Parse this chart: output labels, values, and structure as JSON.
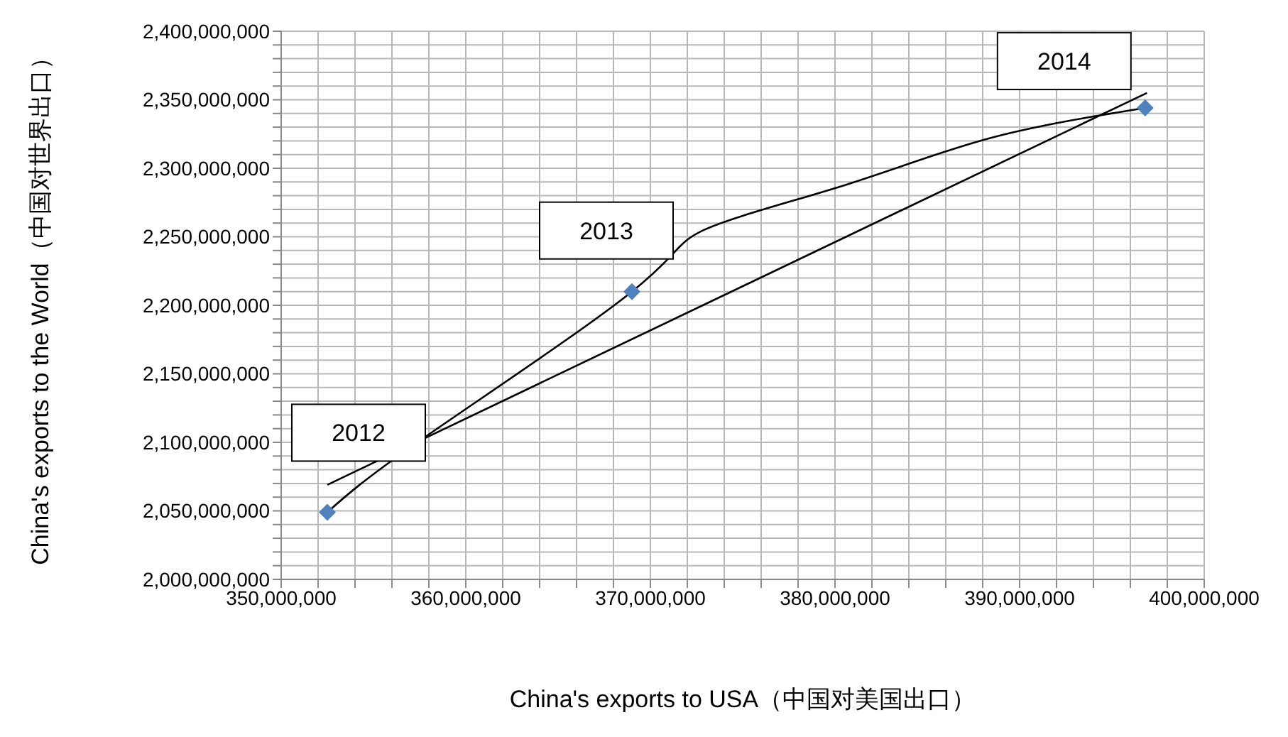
{
  "chart_data": {
    "type": "scatter",
    "xlabel": "China's exports to USA（中国对美国出口）",
    "ylabel": "China's exports to the World（中国对世界出口）",
    "xlim": [
      350000000,
      400000000
    ],
    "xticks": [
      {
        "value": 350000000,
        "label": "350,000,000"
      },
      {
        "value": 352000000,
        "label": null
      },
      {
        "value": 354000000,
        "label": null
      },
      {
        "value": 356000000,
        "label": null
      },
      {
        "value": 358000000,
        "label": null
      },
      {
        "value": 360000000,
        "label": "360,000,000"
      },
      {
        "value": 362000000,
        "label": null
      },
      {
        "value": 364000000,
        "label": null
      },
      {
        "value": 366000000,
        "label": null
      },
      {
        "value": 368000000,
        "label": null
      },
      {
        "value": 370000000,
        "label": "370,000,000"
      },
      {
        "value": 372000000,
        "label": null
      },
      {
        "value": 374000000,
        "label": null
      },
      {
        "value": 376000000,
        "label": null
      },
      {
        "value": 378000000,
        "label": null
      },
      {
        "value": 380000000,
        "label": "380,000,000"
      },
      {
        "value": 382000000,
        "label": null
      },
      {
        "value": 384000000,
        "label": null
      },
      {
        "value": 386000000,
        "label": null
      },
      {
        "value": 388000000,
        "label": null
      },
      {
        "value": 390000000,
        "label": "390,000,000"
      },
      {
        "value": 392000000,
        "label": null
      },
      {
        "value": 394000000,
        "label": null
      },
      {
        "value": 396000000,
        "label": null
      },
      {
        "value": 398000000,
        "label": null
      },
      {
        "value": 400000000,
        "label": "400,000,000"
      }
    ],
    "ylim": [
      2000000000,
      2400000000
    ],
    "yticks": [
      {
        "value": 2000000000,
        "label": "2,000,000,000"
      },
      {
        "value": 2010000000,
        "label": null
      },
      {
        "value": 2020000000,
        "label": null
      },
      {
        "value": 2030000000,
        "label": null
      },
      {
        "value": 2040000000,
        "label": null
      },
      {
        "value": 2050000000,
        "label": "2,050,000,000"
      },
      {
        "value": 2060000000,
        "label": null
      },
      {
        "value": 2070000000,
        "label": null
      },
      {
        "value": 2080000000,
        "label": null
      },
      {
        "value": 2090000000,
        "label": null
      },
      {
        "value": 2100000000,
        "label": "2,100,000,000"
      },
      {
        "value": 2110000000,
        "label": null
      },
      {
        "value": 2120000000,
        "label": null
      },
      {
        "value": 2130000000,
        "label": null
      },
      {
        "value": 2140000000,
        "label": null
      },
      {
        "value": 2150000000,
        "label": "2,150,000,000"
      },
      {
        "value": 2160000000,
        "label": null
      },
      {
        "value": 2170000000,
        "label": null
      },
      {
        "value": 2180000000,
        "label": null
      },
      {
        "value": 2190000000,
        "label": null
      },
      {
        "value": 2200000000,
        "label": "2,200,000,000"
      },
      {
        "value": 2210000000,
        "label": null
      },
      {
        "value": 2220000000,
        "label": null
      },
      {
        "value": 2230000000,
        "label": null
      },
      {
        "value": 2240000000,
        "label": null
      },
      {
        "value": 2250000000,
        "label": "2,250,000,000"
      },
      {
        "value": 2260000000,
        "label": null
      },
      {
        "value": 2270000000,
        "label": null
      },
      {
        "value": 2280000000,
        "label": null
      },
      {
        "value": 2290000000,
        "label": null
      },
      {
        "value": 2300000000,
        "label": "2,300,000,000"
      },
      {
        "value": 2310000000,
        "label": null
      },
      {
        "value": 2320000000,
        "label": null
      },
      {
        "value": 2330000000,
        "label": null
      },
      {
        "value": 2340000000,
        "label": null
      },
      {
        "value": 2350000000,
        "label": "2,350,000,000"
      },
      {
        "value": 2360000000,
        "label": null
      },
      {
        "value": 2370000000,
        "label": null
      },
      {
        "value": 2380000000,
        "label": null
      },
      {
        "value": 2390000000,
        "label": null
      },
      {
        "value": 2400000000,
        "label": "2,400,000,000"
      }
    ],
    "grid": true,
    "legend": false,
    "series": [
      {
        "color": "#4f81bd",
        "marker": "diamond",
        "x": [
          352500000,
          369000000,
          396800000
        ],
        "values": [
          2049000000,
          2210000000,
          2344000000
        ]
      },
      {
        "type": "line",
        "color": "#000000",
        "marker": "none",
        "x": [
          352500000,
          396900000
        ],
        "values": [
          2069000000,
          2355000000
        ]
      },
      {
        "type": "line",
        "color": "#000000",
        "marker": "none",
        "x": [
          352500000,
          357700000,
          369000000,
          372900000,
          380600000,
          388400000,
          396800000
        ],
        "values": [
          2049000000,
          2103000000,
          2210000000,
          2255000000,
          2288000000,
          2322000000,
          2344000000
        ]
      }
    ],
    "annotations": [
      {
        "text": "2012",
        "x": 352500000,
        "y": 2049000000
      },
      {
        "text": "2013",
        "x": 369000000,
        "y": 2210000000
      },
      {
        "text": "2014",
        "x": 396800000,
        "y": 2344000000
      }
    ]
  }
}
